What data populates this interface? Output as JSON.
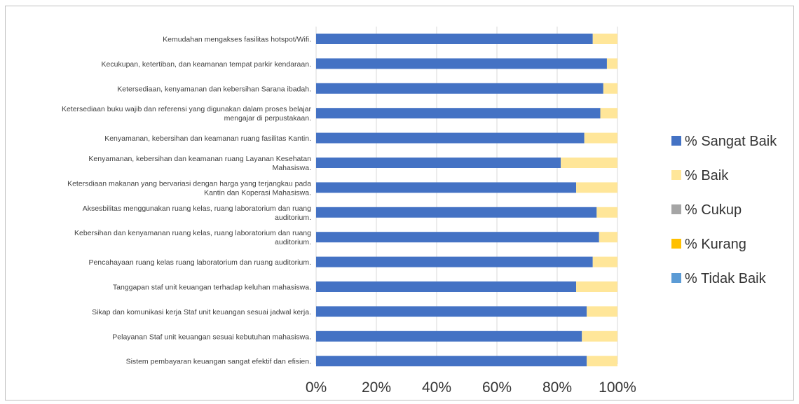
{
  "chart_data": {
    "type": "bar",
    "orientation": "horizontal",
    "stacked": "100%",
    "categories": [
      "Kemudahan mengakses fasilitas hotspot/Wifi.",
      "Kecukupan, ketertiban, dan keamanan tempat parkir kendaraan.",
      "Ketersediaan, kenyamanan dan kebersihan Sarana ibadah.",
      "Ketersediaan buku wajib dan referensi yang digunakan dalam proses belajar mengajar di perpustakaan.",
      "Kenyamanan, kebersihan dan keamanan ruang fasilitas Kantin.",
      "Kenyamanan, kebersihan dan keamanan ruang Layanan Kesehatan Mahasiswa.",
      "Ketersdiaan makanan yang bervariasi dengan harga yang terjangkau pada Kantin dan Koperasi Mahasiswa.",
      "Aksesbilitas menggunakan ruang kelas, ruang laboratorium dan ruang auditorium.",
      "Kebersihan dan kenyamanan ruang kelas, ruang laboratorium dan ruang auditorium.",
      "Pencahayaan ruang kelas ruang laboratorium dan ruang auditorium.",
      "Tanggapan staf unit keuangan terhadap keluhan mahasiswa.",
      "Sikap dan komunikasi kerja Staf unit keuangan sesuai jadwal kerja.",
      "Pelayanan Staf unit keuangan sesuai kebutuhan mahasiswa.",
      "Sistem pembayaran keuangan sangat efektif dan efisien."
    ],
    "category_lines": [
      [
        "Kemudahan mengakses fasilitas hotspot/Wifi."
      ],
      [
        "Kecukupan, ketertiban, dan keamanan tempat parkir kendaraan."
      ],
      [
        "Ketersediaan, kenyamanan dan kebersihan Sarana ibadah."
      ],
      [
        "Ketersediaan buku wajib dan referensi yang digunakan dalam proses belajar",
        "mengajar di perpustakaan."
      ],
      [
        "Kenyamanan, kebersihan dan keamanan ruang fasilitas Kantin."
      ],
      [
        "Kenyamanan, kebersihan dan keamanan ruang Layanan Kesehatan",
        "Mahasiswa."
      ],
      [
        "Ketersdiaan makanan yang bervariasi dengan harga yang terjangkau pada",
        "Kantin dan Koperasi Mahasiswa."
      ],
      [
        "Aksesbilitas menggunakan ruang kelas, ruang laboratorium dan ruang",
        "auditorium."
      ],
      [
        "Kebersihan dan kenyamanan ruang kelas, ruang laboratorium dan ruang",
        "auditorium."
      ],
      [
        "Pencahayaan ruang kelas ruang laboratorium dan ruang auditorium."
      ],
      [
        "Tanggapan staf unit keuangan terhadap keluhan mahasiswa."
      ],
      [
        "Sikap dan komunikasi kerja Staf unit keuangan sesuai jadwal kerja."
      ],
      [
        "Pelayanan Staf unit keuangan sesuai kebutuhan mahasiswa."
      ],
      [
        "Sistem pembayaran keuangan sangat efektif dan efisien."
      ]
    ],
    "series": [
      {
        "name": "% Sangat Baik",
        "color": "#4472c4",
        "values": [
          91.8,
          96.5,
          95.3,
          94.3,
          89.0,
          81.2,
          86.3,
          93.1,
          93.9,
          91.8,
          86.3,
          89.8,
          88.2,
          89.8
        ]
      },
      {
        "name": "% Baik",
        "color": "#ffe699",
        "values": [
          8.2,
          3.5,
          4.7,
          5.7,
          11.0,
          18.8,
          13.7,
          6.9,
          6.1,
          8.2,
          13.7,
          10.2,
          11.8,
          10.2
        ]
      },
      {
        "name": "% Cukup",
        "color": "#a5a5a5",
        "values": [
          0,
          0,
          0,
          0,
          0,
          0,
          0,
          0,
          0,
          0,
          0,
          0,
          0,
          0
        ]
      },
      {
        "name": "% Kurang",
        "color": "#ffc000",
        "values": [
          0,
          0,
          0,
          0,
          0,
          0,
          0,
          0,
          0,
          0,
          0,
          0,
          0,
          0
        ]
      },
      {
        "name": "% Tidak Baik",
        "color": "#5b9bd5",
        "values": [
          0,
          0,
          0,
          0,
          0,
          0,
          0,
          0,
          0,
          0,
          0,
          0,
          0,
          0
        ]
      }
    ],
    "x_ticks": [
      "0%",
      "20%",
      "40%",
      "60%",
      "80%",
      "100%"
    ],
    "xlim": [
      0,
      100
    ],
    "title": "",
    "xlabel": "",
    "ylabel": "",
    "grid": true,
    "legend_position": "right"
  }
}
